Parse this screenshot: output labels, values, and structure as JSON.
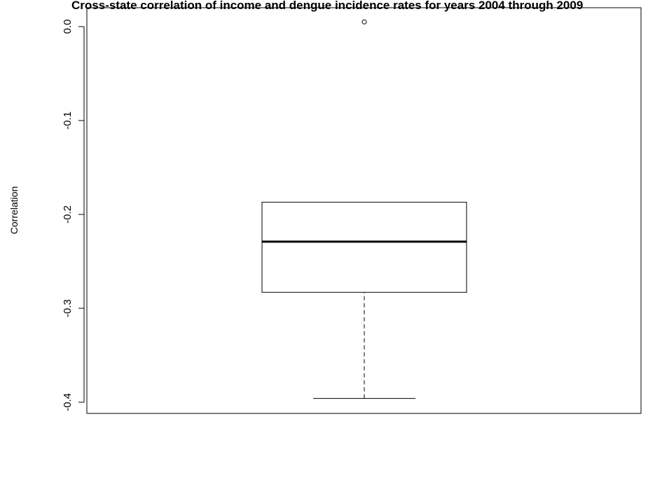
{
  "chart_data": {
    "type": "boxplot",
    "title": "Cross-state correlation of income and dengue incidence rates for years 2004 through 2009",
    "xlabel": "",
    "ylabel": "Correlation",
    "ylim": [
      -0.4,
      0.0
    ],
    "yticks": [
      0.0,
      -0.1,
      -0.2,
      -0.3,
      -0.4
    ],
    "ytick_labels": [
      "0.0",
      "-0.1",
      "-0.2",
      "-0.3",
      "-0.4"
    ],
    "grid": false,
    "box": {
      "whisker_low": -0.396,
      "q1": -0.283,
      "median": -0.229,
      "q3": -0.187,
      "whisker_high": -0.187,
      "outliers": [
        0.005
      ]
    }
  }
}
